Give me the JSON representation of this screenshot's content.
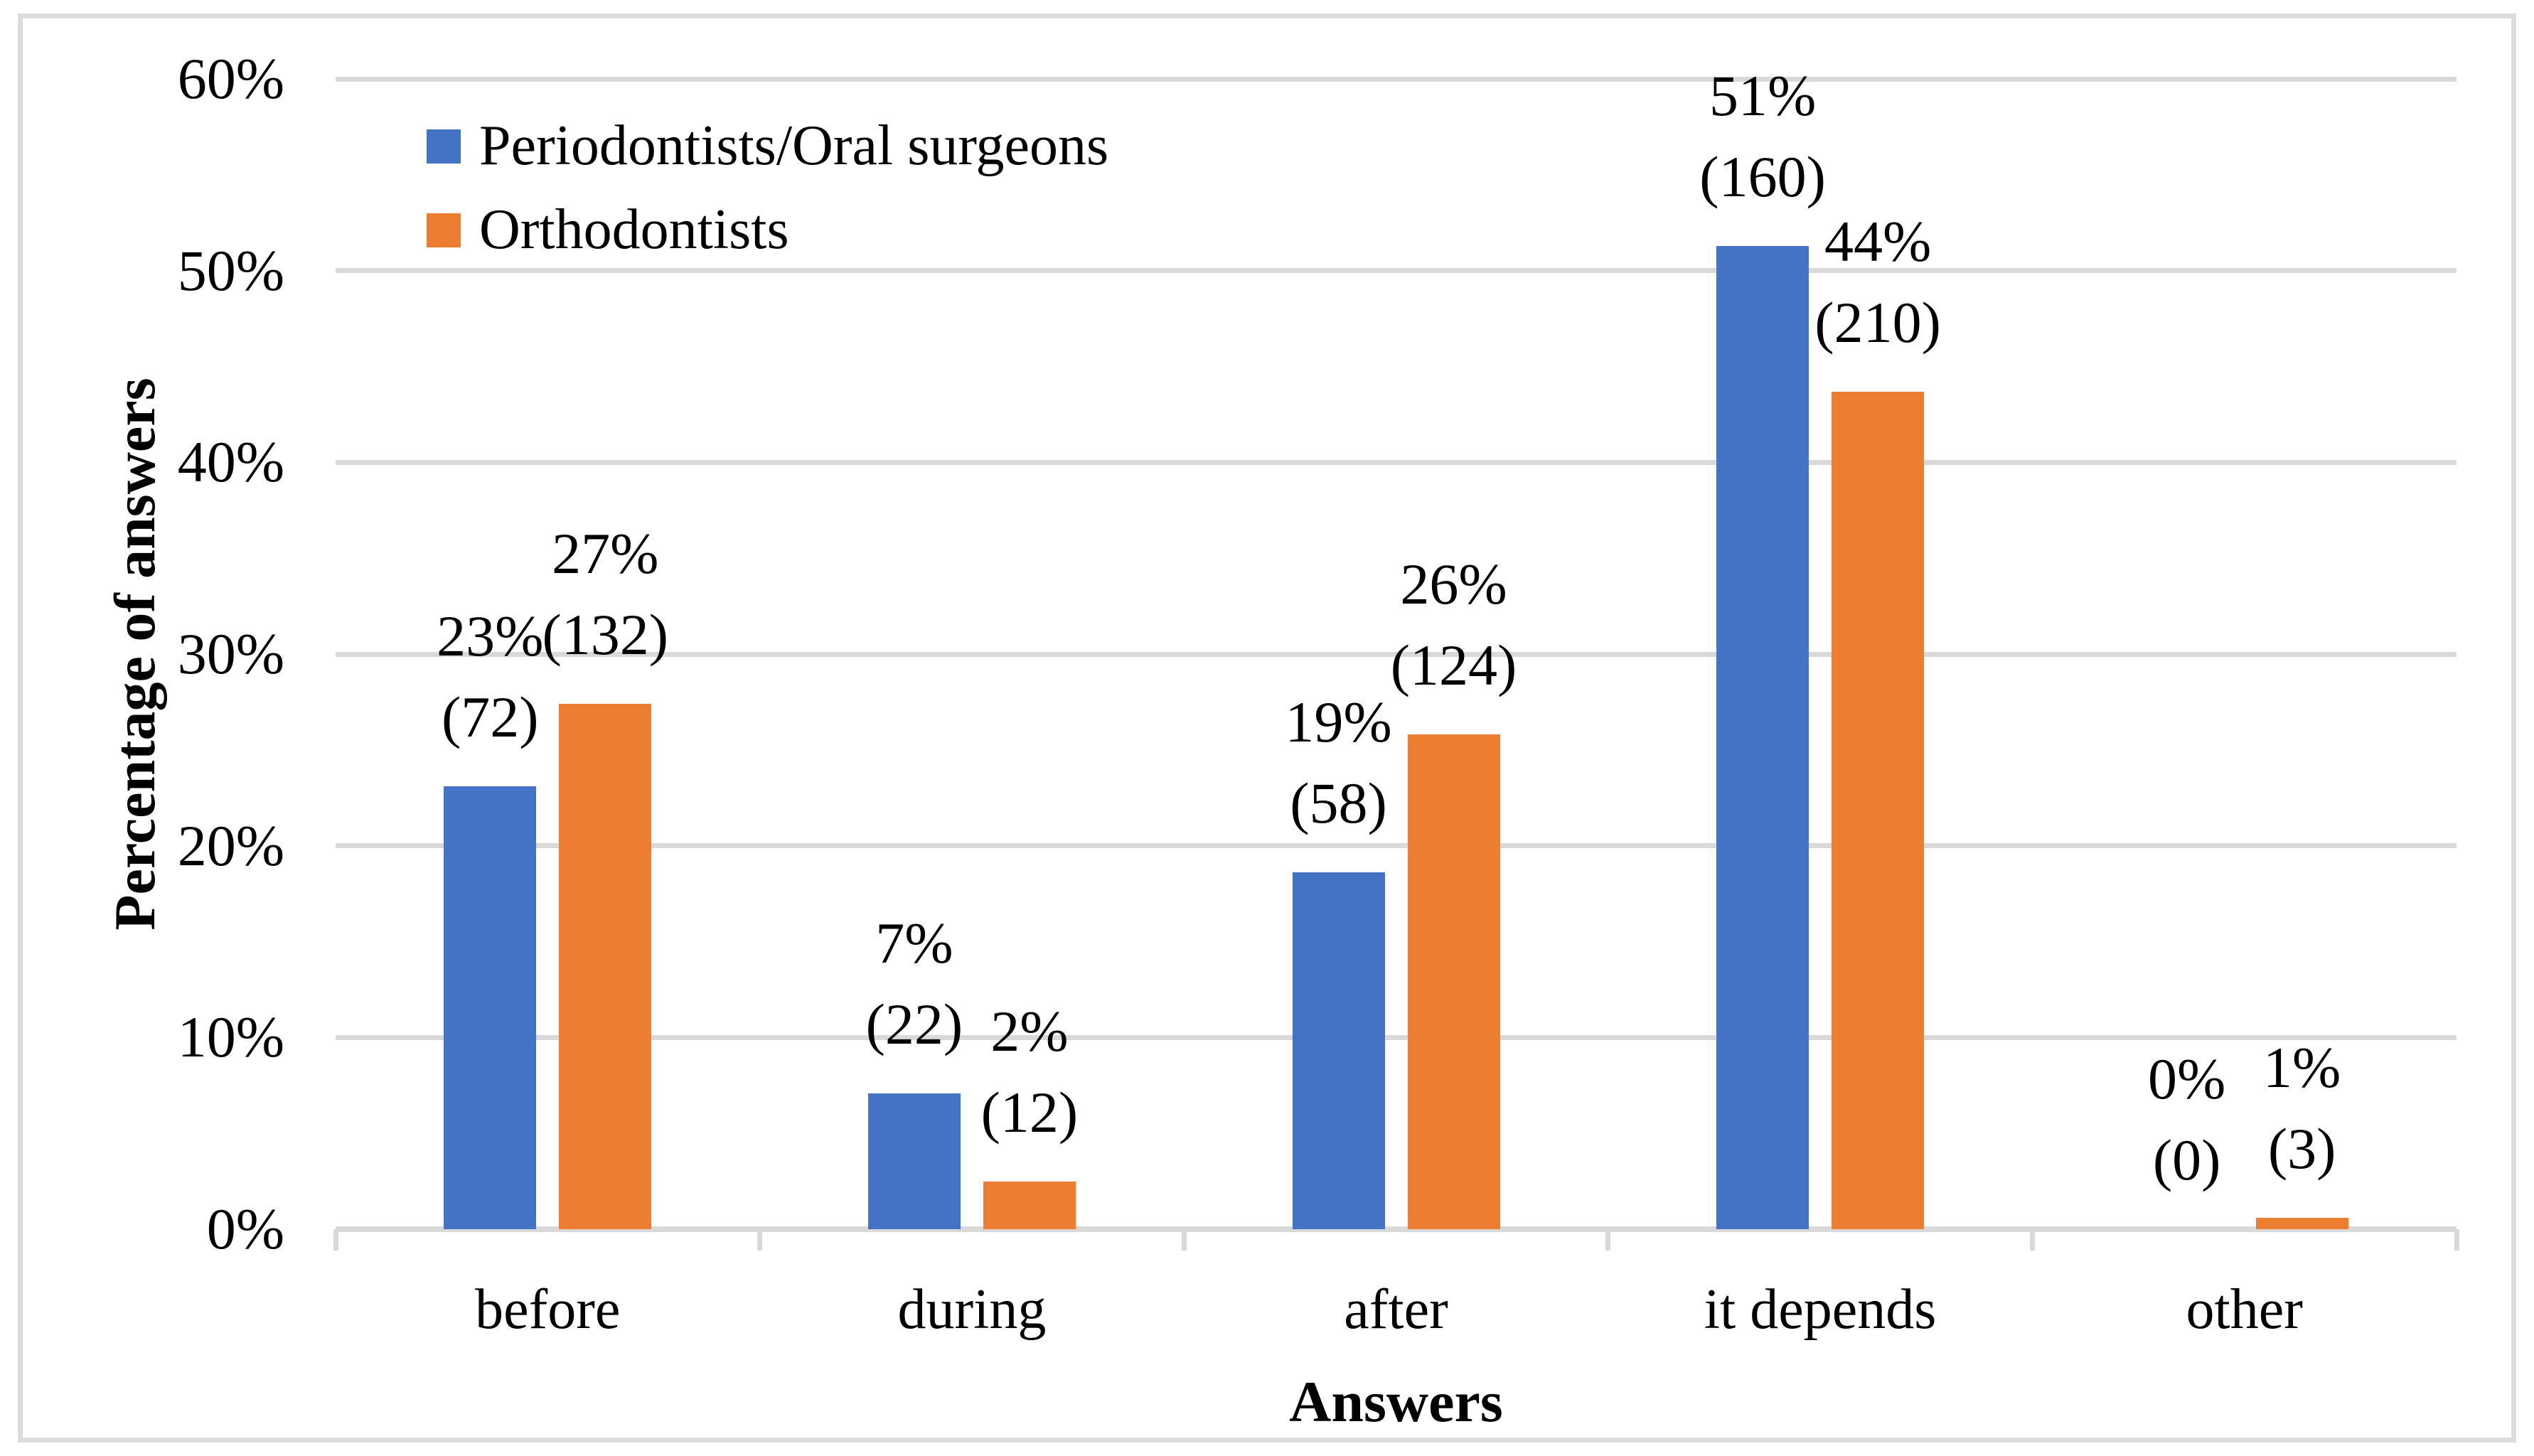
{
  "chart_data": {
    "type": "bar",
    "title": "",
    "xlabel": "Answers",
    "ylabel": "Percentage of answers",
    "categories": [
      "before",
      "during",
      "after",
      "it depends",
      "other"
    ],
    "series": [
      {
        "name": "Periodontists/Oral surgeons",
        "color": "#4472C4",
        "values_pct": [
          23.1,
          7.1,
          18.6,
          51.3,
          0
        ],
        "pct_labels": [
          "23%",
          "7%",
          "19%",
          "51%",
          "0%"
        ],
        "count_labels": [
          "(72)",
          "(22)",
          "(58)",
          "(160)",
          "(0)"
        ]
      },
      {
        "name": "Orthodontists",
        "color": "#ED7D31",
        "values_pct": [
          27.4,
          2.5,
          25.8,
          43.7,
          0.6
        ],
        "pct_labels": [
          "27%",
          "2%",
          "26%",
          "44%",
          "1%"
        ],
        "count_labels": [
          "(132)",
          "(12)",
          "(124)",
          "(210)",
          "(3)"
        ]
      }
    ],
    "ylim": [
      0,
      60
    ],
    "yticks": [
      "0%",
      "10%",
      "20%",
      "30%",
      "40%",
      "50%",
      "60%"
    ],
    "grid": true,
    "legend_position": "top-left-inside",
    "colors": {
      "gridline": "#D9D9D9",
      "axis": "#D9D9D9",
      "border": "#DCDCDC",
      "text": "#000000",
      "background": "#FFFFFF"
    }
  }
}
